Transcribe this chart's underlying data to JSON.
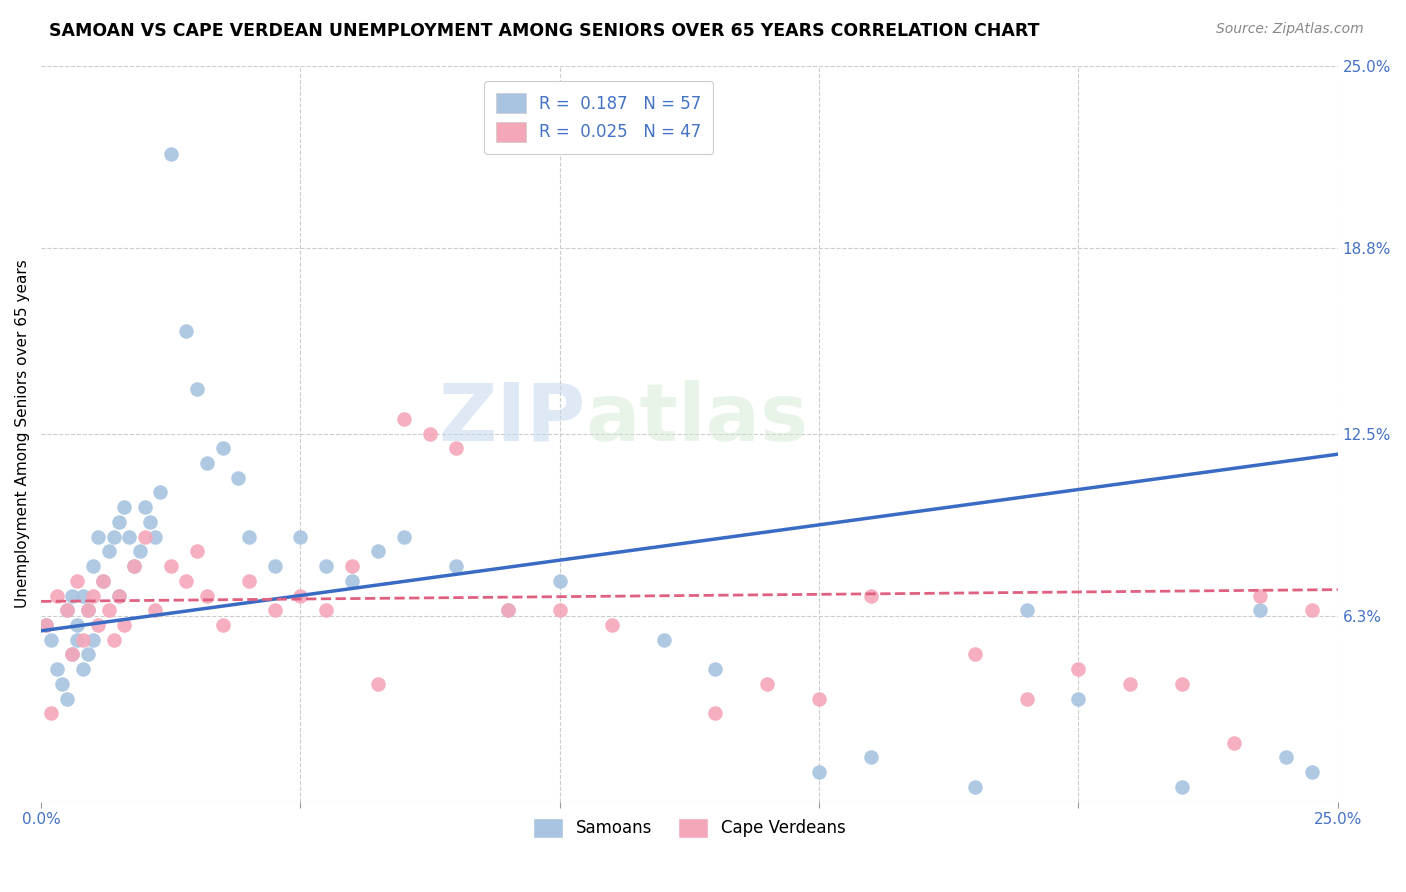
{
  "title": "SAMOAN VS CAPE VERDEAN UNEMPLOYMENT AMONG SENIORS OVER 65 YEARS CORRELATION CHART",
  "source": "Source: ZipAtlas.com",
  "ylabel": "Unemployment Among Seniors over 65 years",
  "x_min": 0.0,
  "x_max": 0.25,
  "y_min": 0.0,
  "y_max": 0.25,
  "samoan_color": "#a8c4e0",
  "cape_verdean_color": "#f4a7b9",
  "samoan_R": 0.187,
  "samoan_N": 57,
  "cape_verdean_R": 0.025,
  "cape_verdean_N": 47,
  "trend_line_blue": "#3a6bc4",
  "trend_line_pink": "#e06080",
  "blue_trend_x0": 0.0,
  "blue_trend_y0": 0.058,
  "blue_trend_x1": 0.25,
  "blue_trend_y1": 0.118,
  "pink_trend_x0": 0.0,
  "pink_trend_y0": 0.068,
  "pink_trend_x1": 0.25,
  "pink_trend_y1": 0.072,
  "samoans_x": [
    0.001,
    0.002,
    0.003,
    0.004,
    0.005,
    0.005,
    0.006,
    0.006,
    0.007,
    0.007,
    0.008,
    0.008,
    0.009,
    0.009,
    0.01,
    0.01,
    0.011,
    0.012,
    0.013,
    0.014,
    0.015,
    0.015,
    0.016,
    0.017,
    0.018,
    0.019,
    0.02,
    0.021,
    0.022,
    0.023,
    0.025,
    0.028,
    0.03,
    0.032,
    0.035,
    0.038,
    0.04,
    0.045,
    0.05,
    0.055,
    0.06,
    0.065,
    0.07,
    0.08,
    0.09,
    0.1,
    0.12,
    0.13,
    0.15,
    0.16,
    0.18,
    0.19,
    0.2,
    0.22,
    0.235,
    0.24,
    0.245
  ],
  "samoans_y": [
    0.06,
    0.055,
    0.045,
    0.04,
    0.065,
    0.035,
    0.07,
    0.05,
    0.06,
    0.055,
    0.07,
    0.045,
    0.065,
    0.05,
    0.08,
    0.055,
    0.09,
    0.075,
    0.085,
    0.09,
    0.095,
    0.07,
    0.1,
    0.09,
    0.08,
    0.085,
    0.1,
    0.095,
    0.09,
    0.105,
    0.22,
    0.16,
    0.14,
    0.115,
    0.12,
    0.11,
    0.09,
    0.08,
    0.09,
    0.08,
    0.075,
    0.085,
    0.09,
    0.08,
    0.065,
    0.075,
    0.055,
    0.045,
    0.01,
    0.015,
    0.005,
    0.065,
    0.035,
    0.005,
    0.065,
    0.015,
    0.01
  ],
  "cape_x": [
    0.001,
    0.002,
    0.003,
    0.005,
    0.006,
    0.007,
    0.008,
    0.009,
    0.01,
    0.011,
    0.012,
    0.013,
    0.014,
    0.015,
    0.016,
    0.018,
    0.02,
    0.022,
    0.025,
    0.028,
    0.03,
    0.032,
    0.035,
    0.04,
    0.045,
    0.05,
    0.055,
    0.06,
    0.065,
    0.07,
    0.075,
    0.08,
    0.09,
    0.1,
    0.11,
    0.13,
    0.14,
    0.15,
    0.16,
    0.18,
    0.19,
    0.2,
    0.21,
    0.22,
    0.23,
    0.235,
    0.245
  ],
  "cape_y": [
    0.06,
    0.03,
    0.07,
    0.065,
    0.05,
    0.075,
    0.055,
    0.065,
    0.07,
    0.06,
    0.075,
    0.065,
    0.055,
    0.07,
    0.06,
    0.08,
    0.09,
    0.065,
    0.08,
    0.075,
    0.085,
    0.07,
    0.06,
    0.075,
    0.065,
    0.07,
    0.065,
    0.08,
    0.04,
    0.13,
    0.125,
    0.12,
    0.065,
    0.065,
    0.06,
    0.03,
    0.04,
    0.035,
    0.07,
    0.05,
    0.035,
    0.045,
    0.04,
    0.04,
    0.02,
    0.07,
    0.065
  ]
}
